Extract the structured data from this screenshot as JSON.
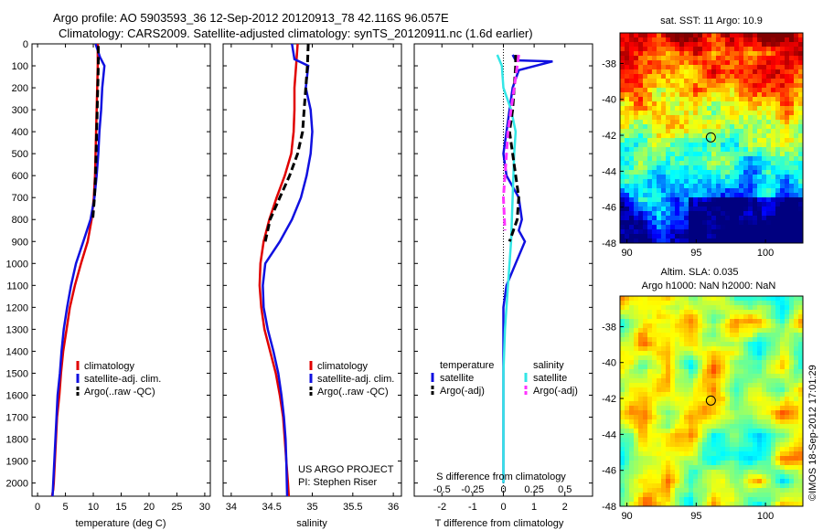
{
  "title": {
    "line1": "Argo profile: AO 5903593_36 12-Sep-2012 20120913_78 42.116S 96.057E",
    "line2": "Climatology: CARS2009. Satellite-adjusted climatology: synTS_20120911.nc (1.6d earlier)"
  },
  "credit": {
    "project": "US ARGO PROJECT",
    "pi": "PI: Stephen Riser",
    "imos": "©IMOS 18-Sep-2012 17:01:29"
  },
  "colors": {
    "climatology": "#e00000",
    "satellite_adj": "#1010e0",
    "argo": "#000000",
    "sat_salinity": "#33e6e6",
    "argo_salinity": "#ff33ff"
  },
  "chart_data": [
    {
      "type": "line",
      "panel": "temperature",
      "xlabel": "temperature (deg C)",
      "xlim": [
        -1,
        31
      ],
      "xticks": [
        0,
        5,
        10,
        15,
        20,
        25,
        30
      ],
      "ylim": [
        2060,
        0
      ],
      "yticks": [
        0,
        100,
        200,
        300,
        400,
        500,
        600,
        700,
        800,
        900,
        1000,
        1100,
        1200,
        1300,
        1400,
        1500,
        1600,
        1700,
        1800,
        1900,
        2000
      ],
      "legend": {
        "position": "lower-center",
        "entries": [
          "climatology",
          "satellite-adj. clim.",
          "Argo(..raw -QC)"
        ]
      },
      "series": [
        {
          "name": "climatology",
          "color": "#e00000",
          "x": [
            10.8,
            10.8,
            10.7,
            10.6,
            10.5,
            10.4,
            10.3,
            10.1,
            9.7,
            9.0,
            7.8,
            6.7,
            5.8,
            5.2,
            4.6,
            4.2,
            3.9,
            3.5,
            3.3,
            3.1,
            2.9,
            2.8,
            2.7,
            2.6
          ],
          "depth": [
            0,
            100,
            200,
            300,
            400,
            500,
            600,
            700,
            800,
            900,
            1000,
            1100,
            1200,
            1300,
            1400,
            1500,
            1600,
            1700,
            1800,
            1900,
            2000,
            2030,
            2045,
            2060
          ]
        },
        {
          "name": "satellite-adj. clim.",
          "color": "#1010e0",
          "x": [
            10.4,
            11.2,
            12.0,
            11.6,
            11.4,
            11.1,
            10.9,
            10.6,
            10.2,
            9.5,
            8.2,
            6.9,
            6.0,
            5.3,
            4.7,
            4.3,
            4.0,
            3.6,
            3.4,
            3.2,
            3.0,
            2.9,
            2.8,
            2.7
          ],
          "depth": [
            0,
            60,
            100,
            200,
            300,
            400,
            500,
            600,
            700,
            800,
            900,
            1000,
            1100,
            1200,
            1300,
            1400,
            1500,
            1600,
            1700,
            1800,
            1900,
            1950,
            2000,
            2060
          ]
        },
        {
          "name": "Argo(..raw -QC)",
          "color": "#000000",
          "x": [
            10.9,
            10.9,
            10.8,
            10.7,
            10.6,
            10.5,
            10.4,
            10.2,
            9.9
          ],
          "depth": [
            10,
            100,
            200,
            300,
            400,
            500,
            600,
            700,
            800
          ]
        }
      ]
    },
    {
      "type": "line",
      "panel": "salinity",
      "xlabel": "salinity",
      "xlim": [
        33.9,
        36.1
      ],
      "xticks": [
        34,
        34.5,
        35,
        35.5,
        36
      ],
      "ylim": [
        2060,
        0
      ],
      "legend": {
        "position": "lower-center",
        "entries": [
          "climatology",
          "satellite-adj. clim.",
          "Argo(..raw -QC)"
        ]
      },
      "series": [
        {
          "name": "climatology",
          "color": "#e00000",
          "x": [
            34.82,
            34.8,
            34.78,
            34.78,
            34.77,
            34.74,
            34.66,
            34.56,
            34.47,
            34.4,
            34.36,
            34.35,
            34.37,
            34.41,
            34.48,
            34.55,
            34.6,
            34.64,
            34.66,
            34.68,
            34.7,
            34.71
          ],
          "depth": [
            0,
            100,
            200,
            300,
            400,
            500,
            600,
            700,
            800,
            900,
            1000,
            1100,
            1200,
            1300,
            1400,
            1500,
            1600,
            1700,
            1800,
            1900,
            2000,
            2060
          ]
        },
        {
          "name": "satellite-adj. clim.",
          "color": "#1010e0",
          "x": [
            34.75,
            34.78,
            34.95,
            34.92,
            34.98,
            35.0,
            34.98,
            34.93,
            34.86,
            34.75,
            34.6,
            34.42,
            34.39,
            34.4,
            34.45,
            34.52,
            34.58,
            34.62,
            34.65,
            34.67,
            34.68,
            34.69
          ],
          "depth": [
            0,
            70,
            100,
            200,
            300,
            400,
            500,
            600,
            700,
            800,
            900,
            1000,
            1100,
            1200,
            1300,
            1400,
            1500,
            1600,
            1700,
            1800,
            1900,
            2060
          ]
        },
        {
          "name": "Argo(..raw -QC)",
          "color": "#000000",
          "x": [
            34.95,
            34.94,
            34.92,
            34.9,
            34.88,
            34.82,
            34.72,
            34.6,
            34.48,
            34.42
          ],
          "depth": [
            0,
            100,
            200,
            300,
            400,
            500,
            600,
            700,
            800,
            900
          ]
        }
      ]
    },
    {
      "type": "line",
      "panel": "difference",
      "xlabel": "T difference from climatology",
      "xlabel_top": "S difference from climatology",
      "xlim": [
        -2.9,
        2.9
      ],
      "xticks": [
        -2,
        -1,
        0,
        1,
        2
      ],
      "xticks_top": [
        -0.5,
        -0.25,
        0,
        0.25,
        0.5
      ],
      "xticks_top_labels": [
        "-0.5",
        "-0.25",
        "0",
        "0.25",
        "0.5"
      ],
      "ylim": [
        2060,
        0
      ],
      "legend": {
        "position": "lower-center",
        "groups": [
          {
            "heading": "temperature",
            "entries": [
              "satellite",
              "Argo(-adj)"
            ]
          },
          {
            "heading": "salinity",
            "entries": [
              "satellite",
              "Argo(-adj)"
            ]
          }
        ]
      },
      "series": [
        {
          "name": "satellite",
          "group": "temperature",
          "color": "#1010e0",
          "x": [
            0.3,
            0.4,
            1.6,
            0.5,
            0.3,
            0.2,
            0.1,
            0.0,
            0.05,
            0.1,
            0.3,
            0.5,
            0.6,
            0.5,
            0.7,
            0.4,
            0.1,
            0.0,
            0.0,
            0.0,
            0.0,
            0.0,
            0.0,
            0.0
          ],
          "depth": [
            50,
            75,
            80,
            120,
            200,
            300,
            400,
            500,
            550,
            600,
            650,
            700,
            800,
            850,
            900,
            1000,
            1100,
            1200,
            1300,
            1500,
            1700,
            1800,
            1900,
            2000
          ]
        },
        {
          "name": "satellite",
          "group": "salinity",
          "color": "#33e6e6",
          "x": [
            -0.2,
            -0.05,
            0.0,
            0.25,
            0.4,
            0.35,
            0.3,
            0.25,
            0.2,
            0.15,
            0.05,
            0.0,
            0.0,
            0.0
          ],
          "depth": [
            50,
            100,
            200,
            300,
            400,
            500,
            700,
            900,
            1000,
            1100,
            1300,
            1500,
            1800,
            2000
          ]
        },
        {
          "name": "Argo(-adj)",
          "group": "temperature",
          "color": "#000000",
          "x": [
            0.4,
            0.4,
            0.35,
            0.3,
            0.2,
            0.3,
            0.5,
            0.45,
            0.2
          ],
          "depth": [
            50,
            100,
            200,
            300,
            400,
            500,
            700,
            800,
            900
          ]
        },
        {
          "name": "Argo(-adj)",
          "group": "salinity",
          "color": "#ff33ff",
          "x": [
            0.5,
            0.45,
            0.35,
            0.25,
            0.15,
            0.1,
            0.05,
            0.0,
            0.05
          ],
          "depth": [
            50,
            100,
            200,
            300,
            400,
            500,
            600,
            700,
            850
          ]
        }
      ]
    },
    {
      "type": "heatmap",
      "panel": "sst_map",
      "title": "sat. SST: 11  Argo: 10.9",
      "xlim": [
        89.5,
        102.7
      ],
      "xticks": [
        90,
        95,
        100
      ],
      "ylim": [
        -48,
        -36.3
      ],
      "yticks": [
        -38,
        -40,
        -42,
        -44,
        -46,
        -48
      ],
      "marker": {
        "lon": 96.057,
        "lat": -42.116
      }
    },
    {
      "type": "heatmap",
      "panel": "sla_map",
      "title_line1": "Altim. SLA: 0.035",
      "title_line2": "Argo h1000: NaN h2000: NaN",
      "xlim": [
        89.5,
        102.7
      ],
      "xticks": [
        90,
        95,
        100
      ],
      "ylim": [
        -48,
        -36.3
      ],
      "yticks": [
        -38,
        -40,
        -42,
        -44,
        -46,
        -48
      ],
      "marker": {
        "lon": 96.057,
        "lat": -42.116
      }
    }
  ]
}
